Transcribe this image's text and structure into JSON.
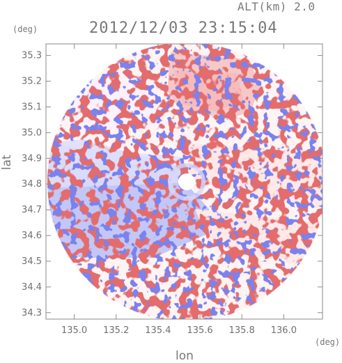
{
  "header": {
    "altitude_label": "ALT(km) 2.0",
    "datetime": "2012/12/03 23:15:04"
  },
  "axes": {
    "y_unit": "(deg)",
    "x_unit": "(deg)",
    "xlabel": "lon",
    "ylabel": "lat"
  },
  "chart_data": {
    "type": "heatmap",
    "title": "2012/12/03 23:15:04",
    "subtitle": "ALT(km) 2.0",
    "xlabel": "lon",
    "ylabel": "lat",
    "x_unit": "(deg)",
    "y_unit": "(deg)",
    "xlim": [
      134.865,
      136.185
    ],
    "ylim": [
      34.275,
      35.345
    ],
    "x_ticks": [
      "135.0",
      "135.2",
      "135.4",
      "135.6",
      "135.8",
      "136.0"
    ],
    "y_ticks": [
      "34.3",
      "34.4",
      "34.5",
      "34.6",
      "34.7",
      "34.8",
      "34.9",
      "35.0",
      "35.1",
      "35.2",
      "35.3"
    ],
    "radar_center": [
      135.52,
      34.81
    ],
    "colors": {
      "positive": "#f28888",
      "negative": "#8f95f2",
      "neutral": "#ffffff",
      "frame": "#8a8a8a"
    },
    "description_of_fields": "Diverging blue-white-red radial field within a circular coverage area"
  }
}
